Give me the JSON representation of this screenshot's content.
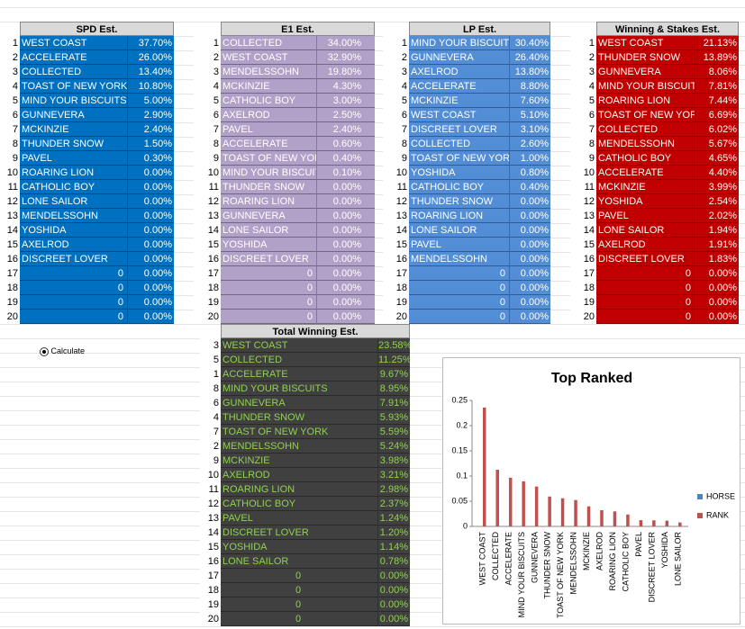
{
  "tables": [
    {
      "title": "SPD Est.",
      "rows": [
        [
          "1",
          "WEST COAST",
          "37.70%"
        ],
        [
          "2",
          "ACCELERATE",
          "26.00%"
        ],
        [
          "3",
          "COLLECTED",
          "13.40%"
        ],
        [
          "4",
          "TOAST OF NEW YORK",
          "10.80%"
        ],
        [
          "5",
          "MIND YOUR BISCUITS",
          "5.00%"
        ],
        [
          "6",
          "GUNNEVERA",
          "2.90%"
        ],
        [
          "7",
          "MCKINZIE",
          "2.40%"
        ],
        [
          "8",
          "THUNDER SNOW",
          "1.50%"
        ],
        [
          "9",
          "PAVEL",
          "0.30%"
        ],
        [
          "10",
          "ROARING LION",
          "0.00%"
        ],
        [
          "11",
          "CATHOLIC BOY",
          "0.00%"
        ],
        [
          "12",
          "LONE SAILOR",
          "0.00%"
        ],
        [
          "13",
          "MENDELSSOHN",
          "0.00%"
        ],
        [
          "14",
          "YOSHIDA",
          "0.00%"
        ],
        [
          "15",
          "AXELROD",
          "0.00%"
        ],
        [
          "16",
          "DISCREET LOVER",
          "0.00%"
        ],
        [
          "17",
          "0",
          "0.00%"
        ],
        [
          "18",
          "0",
          "0.00%"
        ],
        [
          "19",
          "0",
          "0.00%"
        ],
        [
          "20",
          "0",
          "0.00%"
        ]
      ]
    },
    {
      "title": "E1 Est.",
      "rows": [
        [
          "1",
          "COLLECTED",
          "34.00%"
        ],
        [
          "2",
          "WEST COAST",
          "32.90%"
        ],
        [
          "3",
          "MENDELSSOHN",
          "19.80%"
        ],
        [
          "4",
          "MCKINZIE",
          "4.30%"
        ],
        [
          "5",
          "CATHOLIC BOY",
          "3.00%"
        ],
        [
          "6",
          "AXELROD",
          "2.50%"
        ],
        [
          "7",
          "PAVEL",
          "2.40%"
        ],
        [
          "8",
          "ACCELERATE",
          "0.60%"
        ],
        [
          "9",
          "TOAST OF NEW YORI",
          "0.40%"
        ],
        [
          "10",
          "MIND YOUR BISCUIT",
          "0.10%"
        ],
        [
          "11",
          "THUNDER SNOW",
          "0.00%"
        ],
        [
          "12",
          "ROARING LION",
          "0.00%"
        ],
        [
          "13",
          "GUNNEVERA",
          "0.00%"
        ],
        [
          "14",
          "LONE SAILOR",
          "0.00%"
        ],
        [
          "15",
          "YOSHIDA",
          "0.00%"
        ],
        [
          "16",
          "DISCREET LOVER",
          "0.00%"
        ],
        [
          "17",
          "0",
          "0.00%"
        ],
        [
          "18",
          "0",
          "0.00%"
        ],
        [
          "19",
          "0",
          "0.00%"
        ],
        [
          "20",
          "0",
          "0.00%"
        ]
      ]
    },
    {
      "title": "LP Est.",
      "rows": [
        [
          "1",
          "MIND YOUR BISCUIT",
          "30.40%"
        ],
        [
          "2",
          "GUNNEVERA",
          "26.40%"
        ],
        [
          "3",
          "AXELROD",
          "13.80%"
        ],
        [
          "4",
          "ACCELERATE",
          "8.80%"
        ],
        [
          "5",
          "MCKINZIE",
          "7.60%"
        ],
        [
          "6",
          "WEST COAST",
          "5.10%"
        ],
        [
          "7",
          "DISCREET LOVER",
          "3.10%"
        ],
        [
          "8",
          "COLLECTED",
          "2.60%"
        ],
        [
          "9",
          "TOAST OF NEW YORI",
          "1.00%"
        ],
        [
          "10",
          "YOSHIDA",
          "0.80%"
        ],
        [
          "11",
          "CATHOLIC BOY",
          "0.40%"
        ],
        [
          "12",
          "THUNDER SNOW",
          "0.00%"
        ],
        [
          "13",
          "ROARING LION",
          "0.00%"
        ],
        [
          "14",
          "LONE SAILOR",
          "0.00%"
        ],
        [
          "15",
          "PAVEL",
          "0.00%"
        ],
        [
          "16",
          "MENDELSSOHN",
          "0.00%"
        ],
        [
          "17",
          "0",
          "0.00%"
        ],
        [
          "18",
          "0",
          "0.00%"
        ],
        [
          "19",
          "0",
          "0.00%"
        ],
        [
          "20",
          "0",
          "0.00%"
        ]
      ]
    },
    {
      "title": "Winning & Stakes Est.",
      "rows": [
        [
          "1",
          "WEST COAST",
          "21.13%"
        ],
        [
          "2",
          "THUNDER SNOW",
          "13.89%"
        ],
        [
          "3",
          "GUNNEVERA",
          "8.06%"
        ],
        [
          "4",
          "MIND YOUR BISCUIT",
          "7.81%"
        ],
        [
          "5",
          "ROARING LION",
          "7.44%"
        ],
        [
          "6",
          "TOAST OF NEW YORI",
          "6.69%"
        ],
        [
          "7",
          "COLLECTED",
          "6.02%"
        ],
        [
          "8",
          "MENDELSSOHN",
          "5.67%"
        ],
        [
          "9",
          "CATHOLIC BOY",
          "4.65%"
        ],
        [
          "10",
          "ACCELERATE",
          "4.40%"
        ],
        [
          "11",
          "MCKINZIE",
          "3.99%"
        ],
        [
          "12",
          "YOSHIDA",
          "2.54%"
        ],
        [
          "13",
          "PAVEL",
          "2.02%"
        ],
        [
          "14",
          "LONE SAILOR",
          "1.94%"
        ],
        [
          "15",
          "AXELROD",
          "1.91%"
        ],
        [
          "16",
          "DISCREET LOVER",
          "1.83%"
        ],
        [
          "17",
          "0",
          "0.00%"
        ],
        [
          "18",
          "0",
          "0.00%"
        ],
        [
          "19",
          "0",
          "0.00%"
        ],
        [
          "20",
          "0",
          "0.00%"
        ]
      ]
    },
    {
      "title": "Total Winning Est.",
      "rows": [
        [
          "3",
          "WEST COAST",
          "23.58%"
        ],
        [
          "5",
          "COLLECTED",
          "11.25%"
        ],
        [
          "1",
          "ACCELERATE",
          "9.67%"
        ],
        [
          "8",
          "MIND YOUR BISCUITS",
          "8.95%"
        ],
        [
          "6",
          "GUNNEVERA",
          "7.91%"
        ],
        [
          "4",
          "THUNDER SNOW",
          "5.93%"
        ],
        [
          "7",
          "TOAST OF NEW YORK",
          "5.59%"
        ],
        [
          "2",
          "MENDELSSOHN",
          "5.24%"
        ],
        [
          "9",
          "MCKINZIE",
          "3.98%"
        ],
        [
          "10",
          "AXELROD",
          "3.21%"
        ],
        [
          "11",
          "ROARING LION",
          "2.98%"
        ],
        [
          "12",
          "CATHOLIC BOY",
          "2.37%"
        ],
        [
          "13",
          "PAVEL",
          "1.24%"
        ],
        [
          "14",
          "DISCREET LOVER",
          "1.20%"
        ],
        [
          "15",
          "YOSHIDA",
          "1.14%"
        ],
        [
          "16",
          "LONE SAILOR",
          "0.78%"
        ],
        [
          "17",
          "0",
          "0.00%"
        ],
        [
          "18",
          "0",
          "0.00%"
        ],
        [
          "19",
          "0",
          "0.00%"
        ],
        [
          "20",
          "0",
          "0.00%"
        ]
      ]
    }
  ],
  "button": {
    "label": "Calculate"
  },
  "chart_data": {
    "type": "bar",
    "title": "Top Ranked",
    "categories": [
      "WEST COAST",
      "COLLECTED",
      "ACCELERATE",
      "MIND YOUR BISCUITS",
      "GUNNEVERA",
      "THUNDER SNOW",
      "TOAST OF NEW YORK",
      "MENDELSSOHN",
      "MCKINZIE",
      "AXELROD",
      "ROARING LION",
      "CATHOLIC BOY",
      "PAVEL",
      "DISCREET LOVER",
      "YOSHIDA",
      "LONE SAILOR"
    ],
    "series": [
      {
        "name": "HORSE",
        "color": "#4f81bd",
        "values": [
          null,
          null,
          null,
          null,
          null,
          null,
          null,
          null,
          null,
          null,
          null,
          null,
          null,
          null,
          null,
          null
        ]
      },
      {
        "name": "RANK",
        "color": "#c0504d",
        "values": [
          0.2358,
          0.1125,
          0.0967,
          0.0895,
          0.0791,
          0.0593,
          0.0559,
          0.0524,
          0.0398,
          0.0321,
          0.0298,
          0.0237,
          0.0124,
          0.012,
          0.0114,
          0.0078
        ]
      }
    ],
    "ylim": [
      0,
      0.25
    ],
    "yticks": [
      0,
      0.05,
      0.1,
      0.15,
      0.2,
      0.25
    ],
    "legend": "right"
  }
}
